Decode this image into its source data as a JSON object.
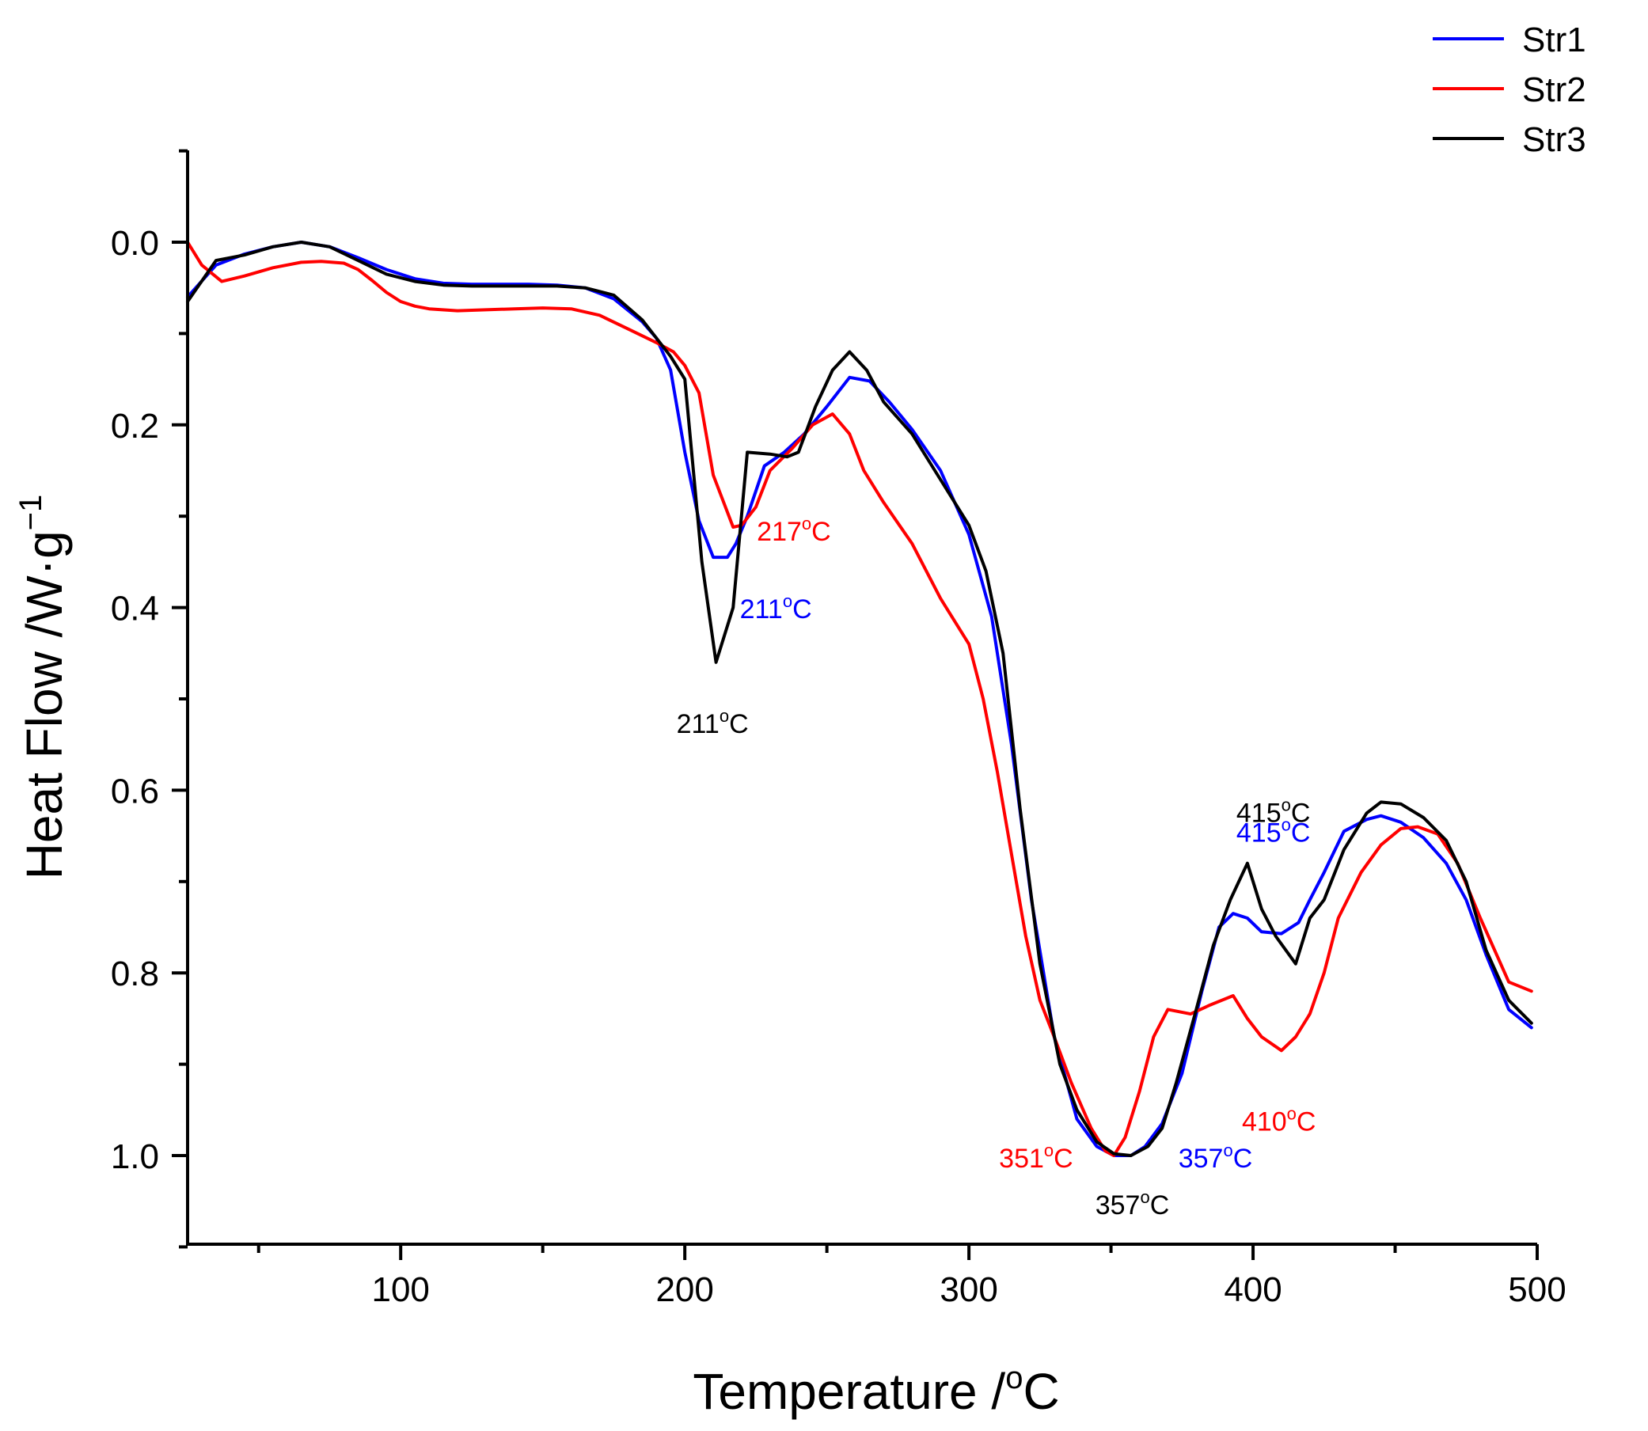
{
  "chart_data": {
    "type": "line",
    "title": "",
    "xlabel": "Temperature /",
    "xlabel_unit_sup": "o",
    "xlabel_unit": "C",
    "ylabel": "Heat Flow /W·g",
    "ylabel_sup": "−1",
    "xlim": [
      25,
      500
    ],
    "ylim": [
      -0.1,
      1.1
    ],
    "y_inverted": true,
    "x_ticks": [
      100,
      200,
      300,
      400,
      500
    ],
    "x_tick_labels": [
      "100",
      "200",
      "300",
      "400",
      "500"
    ],
    "y_ticks": [
      0.0,
      0.2,
      0.4,
      0.6,
      0.8,
      1.0
    ],
    "y_tick_labels": [
      "0.0",
      "0.2",
      "0.4",
      "0.6",
      "0.8",
      "1.0"
    ],
    "legend_position": "top-right",
    "series": [
      {
        "name": "Str1",
        "color": "#0000ff",
        "x": [
          25,
          35,
          45,
          55,
          65,
          75,
          85,
          95,
          105,
          115,
          125,
          135,
          145,
          155,
          165,
          175,
          185,
          190,
          195,
          200,
          205,
          210,
          215,
          218,
          222,
          228,
          235,
          242,
          250,
          258,
          265,
          272,
          280,
          290,
          300,
          308,
          315,
          322,
          330,
          338,
          345,
          351,
          357,
          362,
          368,
          375,
          382,
          388,
          393,
          398,
          403,
          410,
          416,
          420,
          425,
          432,
          440,
          445,
          452,
          460,
          468,
          475,
          482,
          490,
          498
        ],
        "y": [
          0.06,
          0.025,
          0.013,
          0.005,
          0.0,
          0.005,
          0.017,
          0.03,
          0.04,
          0.045,
          0.046,
          0.046,
          0.046,
          0.047,
          0.05,
          0.062,
          0.087,
          0.105,
          0.14,
          0.23,
          0.305,
          0.345,
          0.345,
          0.33,
          0.3,
          0.245,
          0.23,
          0.21,
          0.18,
          0.148,
          0.152,
          0.175,
          0.205,
          0.25,
          0.32,
          0.41,
          0.55,
          0.72,
          0.87,
          0.96,
          0.99,
          1.0,
          1.0,
          0.99,
          0.965,
          0.91,
          0.82,
          0.75,
          0.735,
          0.74,
          0.755,
          0.757,
          0.745,
          0.72,
          0.69,
          0.645,
          0.632,
          0.628,
          0.635,
          0.652,
          0.68,
          0.72,
          0.78,
          0.84,
          0.86
        ]
      },
      {
        "name": "Str2",
        "color": "#ff0000",
        "x": [
          25,
          30,
          37,
          45,
          55,
          65,
          72,
          80,
          85,
          90,
          95,
          100,
          105,
          110,
          120,
          130,
          140,
          150,
          160,
          170,
          180,
          190,
          196,
          200,
          205,
          210,
          217,
          220,
          225,
          230,
          238,
          245,
          252,
          258,
          263,
          270,
          280,
          290,
          300,
          305,
          310,
          315,
          320,
          325,
          330,
          336,
          343,
          348,
          351,
          355,
          360,
          365,
          370,
          378,
          385,
          393,
          398,
          403,
          410,
          415,
          420,
          425,
          430,
          438,
          445,
          452,
          458,
          465,
          472,
          480,
          490,
          498
        ],
        "y": [
          0.0,
          0.025,
          0.043,
          0.037,
          0.028,
          0.022,
          0.021,
          0.023,
          0.03,
          0.042,
          0.055,
          0.065,
          0.07,
          0.073,
          0.075,
          0.074,
          0.073,
          0.072,
          0.073,
          0.08,
          0.095,
          0.11,
          0.12,
          0.135,
          0.165,
          0.255,
          0.312,
          0.31,
          0.29,
          0.25,
          0.225,
          0.2,
          0.188,
          0.21,
          0.25,
          0.285,
          0.33,
          0.39,
          0.44,
          0.5,
          0.58,
          0.67,
          0.76,
          0.83,
          0.87,
          0.92,
          0.97,
          0.995,
          1.0,
          0.98,
          0.93,
          0.87,
          0.84,
          0.845,
          0.835,
          0.825,
          0.85,
          0.87,
          0.885,
          0.87,
          0.845,
          0.8,
          0.74,
          0.69,
          0.66,
          0.642,
          0.64,
          0.648,
          0.68,
          0.74,
          0.81,
          0.82
        ]
      },
      {
        "name": "Str3",
        "color": "#000000",
        "x": [
          25,
          35,
          45,
          55,
          65,
          75,
          85,
          95,
          105,
          115,
          125,
          135,
          145,
          155,
          165,
          175,
          185,
          190,
          195,
          200,
          206,
          211,
          217,
          222,
          230,
          236,
          240,
          246,
          252,
          258,
          264,
          270,
          280,
          290,
          300,
          306,
          312,
          318,
          325,
          332,
          338,
          345,
          351,
          357,
          363,
          368,
          373,
          380,
          386,
          392,
          398,
          403,
          408,
          415,
          420,
          425,
          432,
          440,
          445,
          452,
          460,
          468,
          475,
          482,
          490,
          498
        ],
        "y": [
          0.065,
          0.02,
          0.014,
          0.005,
          0.0,
          0.005,
          0.02,
          0.035,
          0.043,
          0.047,
          0.048,
          0.048,
          0.048,
          0.048,
          0.05,
          0.058,
          0.085,
          0.105,
          0.125,
          0.15,
          0.35,
          0.46,
          0.4,
          0.23,
          0.232,
          0.235,
          0.23,
          0.18,
          0.14,
          0.12,
          0.14,
          0.175,
          0.21,
          0.26,
          0.31,
          0.36,
          0.45,
          0.62,
          0.79,
          0.9,
          0.95,
          0.985,
          0.998,
          1.0,
          0.99,
          0.97,
          0.92,
          0.84,
          0.77,
          0.72,
          0.68,
          0.73,
          0.76,
          0.79,
          0.74,
          0.72,
          0.665,
          0.625,
          0.613,
          0.615,
          0.63,
          0.655,
          0.7,
          0.775,
          0.83,
          0.855
        ]
      }
    ],
    "annotations": [
      {
        "text": "217°C",
        "main": "217",
        "sup": "o",
        "unit": "C",
        "x": 217,
        "y": 0.312,
        "series": "Str2",
        "color": "#ff0000"
      },
      {
        "text": "211°C",
        "main": "211",
        "sup": "o",
        "unit": "C",
        "x": 211,
        "y": 0.345,
        "series": "Str1",
        "color": "#0000ff"
      },
      {
        "text": "211°C",
        "main": "211",
        "sup": "o",
        "unit": "C",
        "x": 211,
        "y": 0.46,
        "series": "Str3",
        "color": "#000000"
      },
      {
        "text": "415°C",
        "main": "415",
        "sup": "o",
        "unit": "C",
        "x": 415,
        "y": 0.757,
        "series": "Str1",
        "color": "#0000ff"
      },
      {
        "text": "415°C",
        "main": "415",
        "sup": "o",
        "unit": "C",
        "x": 415,
        "y": 0.79,
        "series": "Str3",
        "color": "#000000"
      },
      {
        "text": "410°C",
        "main": "410",
        "sup": "o",
        "unit": "C",
        "x": 410,
        "y": 0.885,
        "series": "Str2",
        "color": "#ff0000"
      },
      {
        "text": "351°C",
        "main": "351",
        "sup": "o",
        "unit": "C",
        "x": 351,
        "y": 1.0,
        "series": "Str2",
        "color": "#ff0000"
      },
      {
        "text": "357°C",
        "main": "357",
        "sup": "o",
        "unit": "C",
        "x": 357,
        "y": 1.0,
        "series": "Str1",
        "color": "#0000ff"
      },
      {
        "text": "357°C",
        "main": "357",
        "sup": "o",
        "unit": "C",
        "x": 357,
        "y": 1.0,
        "series": "Str3",
        "color": "#000000"
      }
    ]
  }
}
